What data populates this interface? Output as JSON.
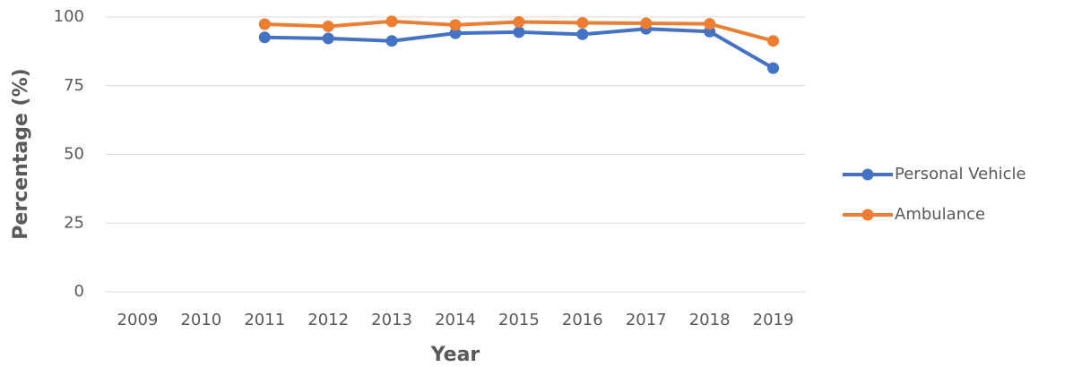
{
  "chart_data": {
    "type": "line",
    "x_label": "Year",
    "y_label": "Percentage (%)",
    "categories": [
      "2009",
      "2010",
      "2011",
      "2012",
      "2013",
      "2014",
      "2015",
      "2016",
      "2017",
      "2018",
      "2019"
    ],
    "series": [
      {
        "name": "Personal Vehicle",
        "color": "#4472c4",
        "values": [
          null,
          null,
          92.6,
          92.2,
          91.3,
          94.1,
          94.5,
          93.7,
          95.7,
          94.7,
          81.4
        ]
      },
      {
        "name": "Ambulance",
        "color": "#ed7d31",
        "values": [
          null,
          null,
          97.4,
          96.6,
          98.4,
          97.1,
          98.2,
          97.9,
          97.7,
          97.5,
          91.3
        ]
      }
    ],
    "ylim": [
      0,
      100
    ],
    "yticks": [
      0,
      25,
      50,
      75,
      100
    ],
    "grid": true,
    "legend": "right"
  }
}
